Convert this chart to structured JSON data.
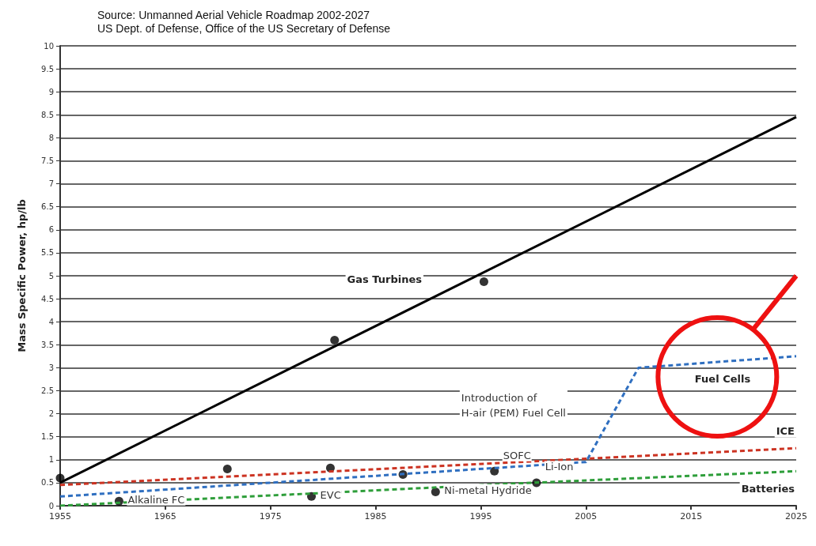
{
  "chart_data": {
    "type": "line",
    "ylabel": "Mass Specific Power, hp/lb",
    "annotations": [
      "Source: Unmanned Aerial Vehicle Roadmap 2002-2027",
      "US Dept. of Defense, Office of the US Secretary of Defense",
      "Introduction of\nH-air (PEM) Fuel Cell",
      {
        "text": "Alkaline FC",
        "x": 1960.6,
        "y": 0.1
      },
      {
        "text": "EVC",
        "x": 1978.9,
        "y": 0.2
      },
      {
        "text": "Ni-metal Hydride",
        "x": 1990.7,
        "y": 0.3
      },
      {
        "text": "SOFC",
        "x": 1996.3,
        "y": 0.75
      },
      {
        "text": "Li-Ion",
        "x": 2000.3,
        "y": 0.5
      }
    ],
    "series": [
      {
        "name": "Gas Turbines",
        "color": "#000000",
        "x": [
          1955,
          2025
        ],
        "values": [
          0.5,
          8.45
        ],
        "line_style": "solid"
      },
      {
        "name": "ICE",
        "color": "#cc3322",
        "x": [
          1955,
          2025
        ],
        "values": [
          0.45,
          1.25
        ],
        "line_style": "dashed"
      },
      {
        "name": "Fuel Cells",
        "color": "#2f6fc0",
        "x": [
          1955,
          2005,
          2010,
          2025
        ],
        "values": [
          0.2,
          0.95,
          3.0,
          3.25
        ],
        "line_style": "dashed"
      },
      {
        "name": "Batteries",
        "color": "#2e9e3a",
        "x": [
          1955,
          2000,
          2025
        ],
        "values": [
          0.0,
          0.5,
          0.75
        ],
        "line_style": "dashed"
      },
      {
        "type": "scatter",
        "color": "#000000",
        "marker": "circle",
        "x": [
          1955,
          1960.6,
          1970.9,
          1980.7,
          1981.1,
          1978.9,
          1987.6,
          1990.7,
          1995.3,
          1996.3,
          2000.3
        ],
        "values": [
          0.6,
          0.1,
          0.8,
          0.82,
          3.6,
          0.2,
          0.68,
          0.3,
          4.87,
          0.75,
          0.5
        ]
      }
    ],
    "xlim": [
      1955,
      2025
    ],
    "xticks": [
      1955,
      1965,
      1975,
      1985,
      1995,
      2005,
      2015,
      2025
    ],
    "ylim": [
      0,
      10
    ],
    "yticks": [
      0,
      0.5,
      1,
      1.5,
      2,
      2.5,
      3,
      3.5,
      4,
      4.5,
      5,
      5.5,
      6,
      6.5,
      7,
      7.5,
      8,
      8.5,
      9,
      9.5,
      10
    ],
    "grid": "y",
    "legend": false,
    "marker": "none"
  }
}
